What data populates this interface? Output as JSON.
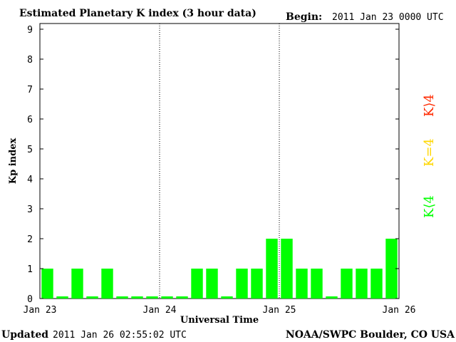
{
  "header": {
    "title": "Estimated Planetary K index (3 hour data)",
    "begin_label": "Begin:",
    "begin_value": "2011 Jan 23 0000 UTC"
  },
  "footer": {
    "updated_label": "Updated",
    "updated_value": "2011 Jan 26 02:55:02 UTC",
    "source": "NOAA/SWPC Boulder, CO USA"
  },
  "legend": [
    {
      "label": "K<4",
      "color": "#00ff00"
    },
    {
      "label": "K=4",
      "color": "#ffd700"
    },
    {
      "label": "K>4",
      "color": "#ff2a00"
    }
  ],
  "chart_data": {
    "type": "bar",
    "title": "Estimated Planetary K index (3 hour data)",
    "xlabel": "Universal Time",
    "ylabel": "Kp index",
    "ylim": [
      0,
      9
    ],
    "y_ticks": [
      "0",
      "1",
      "2",
      "3",
      "4",
      "5",
      "6",
      "7",
      "8",
      "9"
    ],
    "x_ticks": [
      "Jan 23",
      "Jan 24",
      "Jan 25",
      "Jan 26"
    ],
    "interval_hours": 3,
    "values": [
      1,
      0,
      1,
      0,
      1,
      0,
      0,
      0,
      0,
      0,
      1,
      1,
      0,
      1,
      1,
      2,
      2,
      1,
      1,
      0,
      1,
      1,
      1,
      2
    ],
    "bar_color": "#00ff00",
    "grid": false,
    "day_separators": "dotted"
  }
}
